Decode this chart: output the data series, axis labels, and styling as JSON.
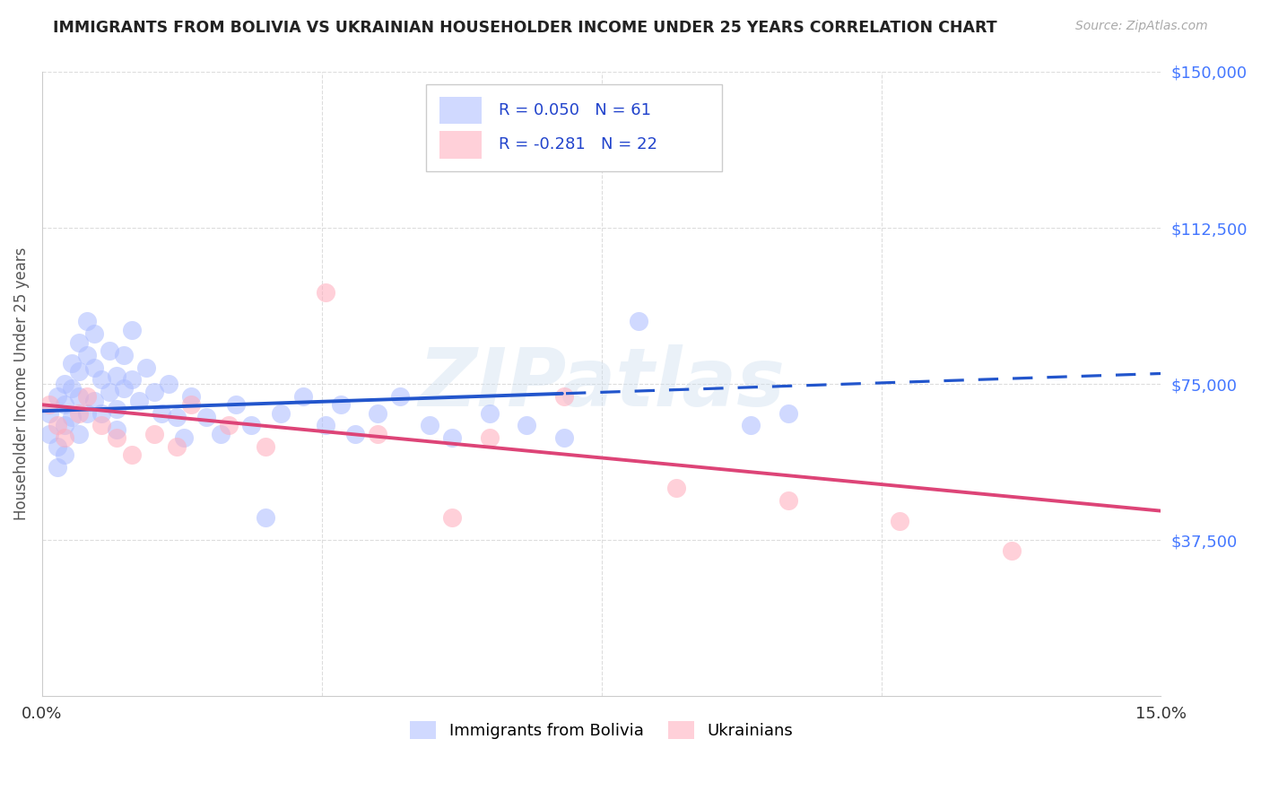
{
  "title": "IMMIGRANTS FROM BOLIVIA VS UKRAINIAN HOUSEHOLDER INCOME UNDER 25 YEARS CORRELATION CHART",
  "source": "Source: ZipAtlas.com",
  "ylabel": "Householder Income Under 25 years",
  "xlim": [
    0.0,
    0.15
  ],
  "ylim": [
    0,
    150000
  ],
  "yticks": [
    0,
    37500,
    75000,
    112500,
    150000
  ],
  "ytick_labels": [
    "",
    "$37,500",
    "$75,000",
    "$112,500",
    "$150,000"
  ],
  "legend1_r": "0.050",
  "legend1_n": "61",
  "legend2_r": "-0.281",
  "legend2_n": "22",
  "bolivia_color": "#aabbff",
  "ukraine_color": "#ffaabb",
  "bolivia_label": "Immigrants from Bolivia",
  "ukraine_label": "Ukrainians",
  "bolivia_trend_color": "#2255cc",
  "ukraine_trend_color": "#dd4477",
  "watermark": "ZIPatlas",
  "background_color": "#ffffff",
  "grid_color": "#dddddd",
  "title_color": "#222222",
  "source_color": "#aaaaaa",
  "ytick_color": "#4477ff",
  "xtick_color": "#333333",
  "bolivia_x": [
    0.001,
    0.001,
    0.002,
    0.002,
    0.002,
    0.003,
    0.003,
    0.003,
    0.003,
    0.004,
    0.004,
    0.004,
    0.005,
    0.005,
    0.005,
    0.005,
    0.006,
    0.006,
    0.006,
    0.007,
    0.007,
    0.007,
    0.008,
    0.008,
    0.009,
    0.009,
    0.01,
    0.01,
    0.01,
    0.011,
    0.011,
    0.012,
    0.012,
    0.013,
    0.014,
    0.015,
    0.016,
    0.017,
    0.018,
    0.019,
    0.02,
    0.022,
    0.024,
    0.026,
    0.028,
    0.03,
    0.032,
    0.035,
    0.038,
    0.04,
    0.042,
    0.045,
    0.048,
    0.052,
    0.055,
    0.06,
    0.065,
    0.07,
    0.08,
    0.095,
    0.1
  ],
  "bolivia_y": [
    68000,
    63000,
    72000,
    60000,
    55000,
    75000,
    70000,
    65000,
    58000,
    80000,
    74000,
    67000,
    85000,
    78000,
    72000,
    63000,
    90000,
    82000,
    68000,
    87000,
    79000,
    71000,
    76000,
    68000,
    83000,
    73000,
    77000,
    69000,
    64000,
    82000,
    74000,
    88000,
    76000,
    71000,
    79000,
    73000,
    68000,
    75000,
    67000,
    62000,
    72000,
    67000,
    63000,
    70000,
    65000,
    43000,
    68000,
    72000,
    65000,
    70000,
    63000,
    68000,
    72000,
    65000,
    62000,
    68000,
    65000,
    62000,
    90000,
    65000,
    68000
  ],
  "ukraine_x": [
    0.001,
    0.002,
    0.003,
    0.005,
    0.006,
    0.008,
    0.01,
    0.012,
    0.015,
    0.018,
    0.02,
    0.025,
    0.03,
    0.038,
    0.045,
    0.055,
    0.06,
    0.07,
    0.085,
    0.1,
    0.115,
    0.13
  ],
  "ukraine_y": [
    70000,
    65000,
    62000,
    68000,
    72000,
    65000,
    62000,
    58000,
    63000,
    60000,
    70000,
    65000,
    60000,
    97000,
    63000,
    43000,
    62000,
    72000,
    50000,
    47000,
    42000,
    35000
  ]
}
